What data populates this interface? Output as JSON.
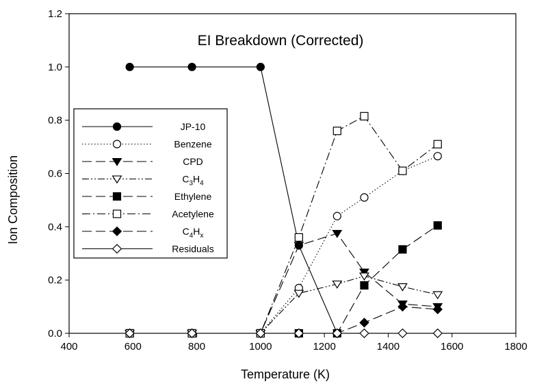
{
  "chart_data": {
    "type": "line",
    "title": "EI Breakdown (Corrected)",
    "xlabel": "Temperature (K)",
    "ylabel": "Ion Composition",
    "xlim": [
      400,
      1800
    ],
    "ylim": [
      0.0,
      1.2
    ],
    "xticks": [
      400,
      600,
      800,
      1000,
      1200,
      1400,
      1600,
      1800
    ],
    "yticks": [
      0.0,
      0.2,
      0.4,
      0.6,
      0.8,
      1.0,
      1.2
    ],
    "xtick_labels": [
      "400",
      "600",
      "800",
      "1000",
      "1200",
      "1400",
      "1600",
      "1800"
    ],
    "ytick_labels": [
      "0.0",
      "0.2",
      "0.4",
      "0.6",
      "0.8",
      "1.0",
      "1.2"
    ],
    "grid": false,
    "legend_position": "middle-left",
    "series": [
      {
        "name": "JP-10",
        "marker": "circle",
        "filled": true,
        "dash": "solid",
        "x": [
          590,
          785,
          1000,
          1120,
          1240
        ],
        "y": [
          1.0,
          1.0,
          1.0,
          0.33,
          0.0
        ]
      },
      {
        "name": "Benzene",
        "marker": "circle",
        "filled": false,
        "dash": "dotted",
        "x": [
          590,
          785,
          1000,
          1120,
          1240,
          1325,
          1445,
          1555
        ],
        "y": [
          0.0,
          0.0,
          0.0,
          0.17,
          0.44,
          0.51,
          0.61,
          0.665
        ]
      },
      {
        "name": "CPD",
        "marker": "triangle-down",
        "filled": true,
        "dash": "longdash",
        "x": [
          590,
          785,
          1000,
          1120,
          1240,
          1325,
          1445,
          1555
        ],
        "y": [
          0.0,
          0.0,
          0.0,
          0.33,
          0.375,
          0.23,
          0.11,
          0.1
        ]
      },
      {
        "name": "C3H4",
        "label_main": "C",
        "label_sub1": "3",
        "label_mid": "H",
        "label_sub2": "4",
        "marker": "triangle-down",
        "filled": false,
        "dash": "dashdotdot",
        "x": [
          590,
          785,
          1000,
          1120,
          1240,
          1325,
          1445,
          1555
        ],
        "y": [
          0.0,
          0.0,
          0.0,
          0.15,
          0.185,
          0.215,
          0.175,
          0.145
        ]
      },
      {
        "name": "Ethylene",
        "marker": "square",
        "filled": true,
        "dash": "longdash",
        "x": [
          590,
          785,
          1000,
          1120,
          1240,
          1325,
          1445,
          1555
        ],
        "y": [
          0.0,
          0.0,
          0.0,
          0.0,
          0.0,
          0.18,
          0.315,
          0.405
        ]
      },
      {
        "name": "Acetylene",
        "marker": "square",
        "filled": false,
        "dash": "dashdot",
        "x": [
          590,
          785,
          1000,
          1120,
          1240,
          1325,
          1445,
          1555
        ],
        "y": [
          0.0,
          0.0,
          0.0,
          0.36,
          0.76,
          0.815,
          0.61,
          0.71
        ]
      },
      {
        "name": "C4Hx",
        "label_main": "C",
        "label_sub1": "4",
        "label_mid": "H",
        "label_sub2": "x",
        "marker": "diamond",
        "filled": true,
        "dash": "longdash",
        "x": [
          590,
          785,
          1000,
          1120,
          1240,
          1325,
          1445,
          1555
        ],
        "y": [
          0.0,
          0.0,
          0.0,
          0.0,
          0.0,
          0.04,
          0.1,
          0.09
        ]
      },
      {
        "name": "Residuals",
        "marker": "diamond",
        "filled": false,
        "dash": "solid",
        "x": [
          590,
          785,
          1000,
          1120,
          1240,
          1325,
          1445,
          1555
        ],
        "y": [
          0.0,
          0.0,
          0.0,
          0.0,
          0.0,
          0.0,
          0.0,
          0.0
        ]
      }
    ]
  }
}
